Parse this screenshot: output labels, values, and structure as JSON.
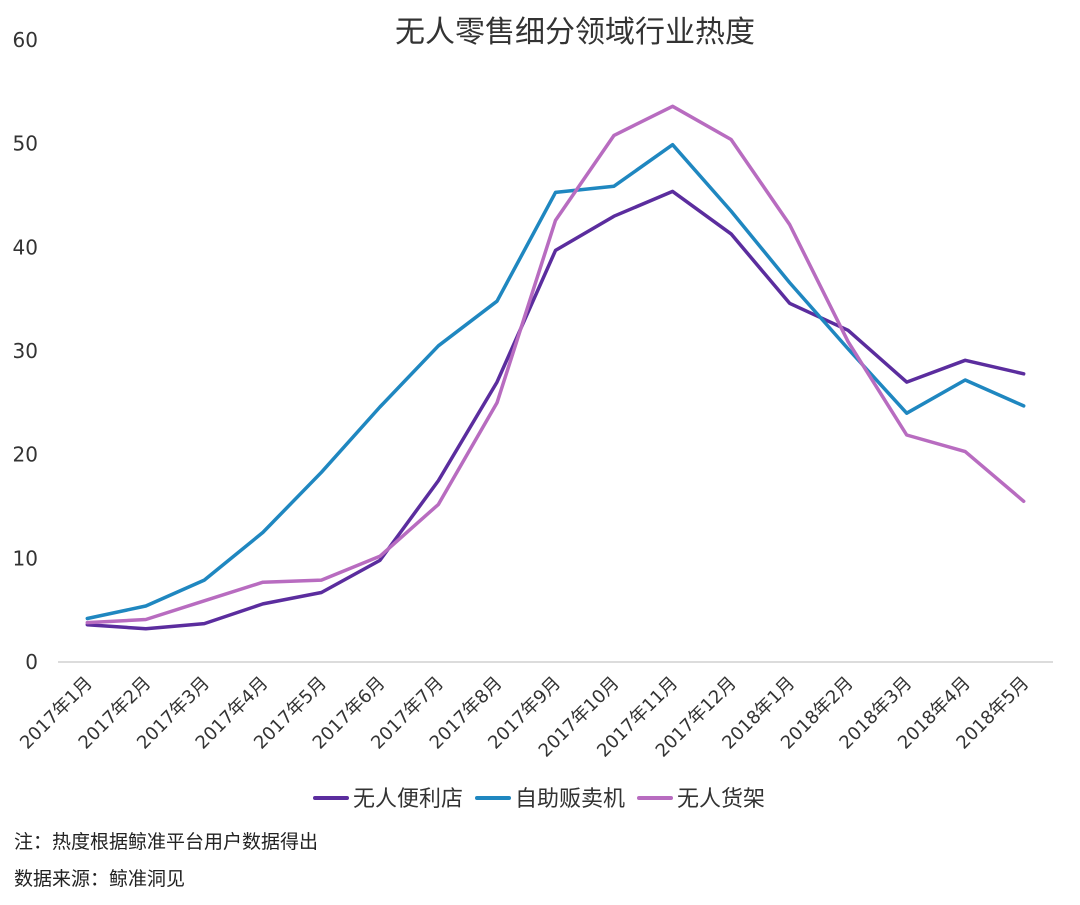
{
  "chart_data": {
    "type": "line",
    "title": "无人零售细分领域行业热度",
    "xlabel": "",
    "ylabel": "",
    "ylim": [
      0,
      60
    ],
    "yticks": [
      0,
      10,
      20,
      30,
      40,
      50,
      60
    ],
    "grid": false,
    "legend_position": "bottom",
    "categories": [
      "2017年1月",
      "2017年2月",
      "2017年3月",
      "2017年4月",
      "2017年5月",
      "2017年6月",
      "2017年7月",
      "2017年8月",
      "2017年9月",
      "2017年10月",
      "2017年11月",
      "2017年12月",
      "2018年1月",
      "2018年2月",
      "2018年3月",
      "2018年4月",
      "2018年5月"
    ],
    "series": [
      {
        "name": "无人便利店",
        "color": "#5b2d9e",
        "values": [
          3.6,
          3.2,
          3.7,
          5.6,
          6.7,
          9.8,
          17.5,
          27.0,
          39.7,
          43.0,
          45.4,
          41.3,
          34.6,
          32.0,
          27.0,
          29.1,
          27.8
        ]
      },
      {
        "name": "自助贩卖机",
        "color": "#1f87c0",
        "values": [
          4.2,
          5.4,
          7.9,
          12.5,
          18.3,
          24.6,
          30.5,
          34.8,
          45.3,
          45.9,
          49.9,
          43.5,
          36.6,
          30.2,
          24.0,
          27.2,
          24.7
        ]
      },
      {
        "name": "无人货架",
        "color": "#b86cc0",
        "values": [
          3.8,
          4.1,
          5.9,
          7.7,
          7.9,
          10.2,
          15.2,
          25.0,
          42.6,
          50.8,
          53.6,
          50.4,
          42.2,
          30.9,
          21.9,
          20.3,
          15.5
        ]
      }
    ]
  },
  "footer": {
    "note": "注：热度根据鲸准平台用户数据得出",
    "source": "数据来源：鲸准洞见"
  }
}
